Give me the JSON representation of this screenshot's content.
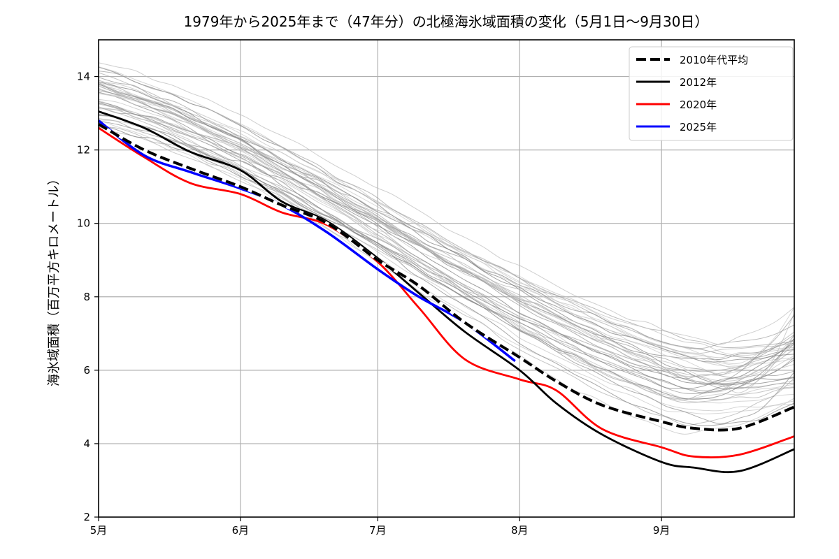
{
  "chart_data": {
    "type": "line",
    "title": "1979年から2025年まで（47年分）の北極海氷域面積の変化（5月1日〜9月30日）",
    "xlabel": "",
    "ylabel": "海氷域面積（百万平方キロメートル）",
    "xlim": [
      0,
      152
    ],
    "ylim": [
      2,
      15
    ],
    "grid": true,
    "x_unit": "day of season (0 = 5月1日)",
    "xticks": [
      {
        "day": 0,
        "label": "5月"
      },
      {
        "day": 31,
        "label": "6月"
      },
      {
        "day": 61,
        "label": "7月"
      },
      {
        "day": 92,
        "label": "8月"
      },
      {
        "day": 123,
        "label": "9月"
      }
    ],
    "yticks": [
      2,
      4,
      6,
      8,
      10,
      12,
      14
    ],
    "legend_position": "top-right",
    "x": [
      0,
      10,
      20,
      31,
      40,
      50,
      61,
      70,
      80,
      92,
      100,
      110,
      123,
      130,
      140,
      152
    ],
    "series": [
      {
        "name": "2010年代平均",
        "color": "#000000",
        "style": "dashed",
        "values": [
          12.7,
          12.0,
          11.5,
          11.0,
          10.5,
          10.0,
          9.0,
          8.3,
          7.3,
          6.35,
          5.7,
          5.05,
          4.6,
          4.42,
          4.42,
          5.0
        ]
      },
      {
        "name": "2012年",
        "color": "#000000",
        "style": "solid",
        "values": [
          13.05,
          12.6,
          11.95,
          11.45,
          10.6,
          10.05,
          9.05,
          8.1,
          7.05,
          6.0,
          5.1,
          4.25,
          3.5,
          3.35,
          3.25,
          3.85
        ]
      },
      {
        "name": "2020年",
        "color": "#ff0000",
        "style": "solid",
        "values": [
          12.6,
          11.8,
          11.1,
          10.8,
          10.3,
          9.95,
          8.95,
          7.7,
          6.3,
          5.75,
          5.45,
          4.4,
          3.9,
          3.65,
          3.7,
          4.2
        ]
      },
      {
        "name": "2025年",
        "color": "#0000ff",
        "style": "solid",
        "values": [
          12.8,
          11.85,
          11.4,
          10.95,
          10.5,
          9.75,
          8.75,
          8.0,
          7.3,
          null,
          null,
          null,
          null,
          null,
          null,
          null
        ],
        "last_day": 91,
        "last_value": 6.25
      }
    ],
    "background_years": {
      "count": 43,
      "color": "#999999",
      "start_range": [
        12.2,
        14.6
      ],
      "september_min_range": [
        4.0,
        7.3
      ],
      "end_range": [
        4.3,
        8.1
      ]
    }
  }
}
